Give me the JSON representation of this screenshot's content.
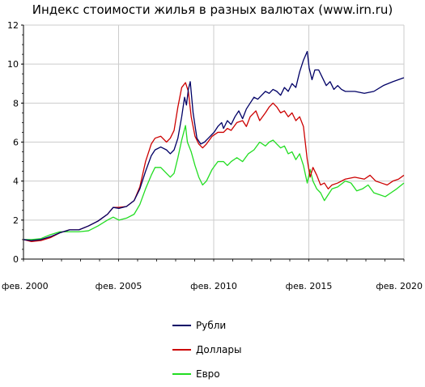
{
  "chart_data": {
    "type": "line",
    "title": "Индекс стоимости жилья в разных валютах (www.irn.ru)",
    "xlabel": "",
    "ylabel": "",
    "xlim": [
      2000.083,
      2020.083
    ],
    "ylim": [
      0,
      12
    ],
    "yticks": [
      0,
      2,
      4,
      6,
      8,
      10,
      12
    ],
    "xticks": [
      {
        "value": 2000.083,
        "label": "фев. 2000"
      },
      {
        "value": 2005.083,
        "label": "фев. 2005"
      },
      {
        "value": 2010.083,
        "label": "фев. 2010"
      },
      {
        "value": 2015.083,
        "label": "фев. 2015"
      },
      {
        "value": 2020.083,
        "label": "фев. 2020"
      }
    ],
    "grid": true,
    "legend_position": "bottom",
    "series": [
      {
        "name": "Рубли",
        "color": "#000066",
        "points": [
          [
            2000.08,
            1.0
          ],
          [
            2000.5,
            0.95
          ],
          [
            2001.0,
            1.0
          ],
          [
            2001.5,
            1.15
          ],
          [
            2002.0,
            1.35
          ],
          [
            2002.5,
            1.5
          ],
          [
            2003.0,
            1.5
          ],
          [
            2003.5,
            1.7
          ],
          [
            2004.0,
            1.95
          ],
          [
            2004.5,
            2.3
          ],
          [
            2004.8,
            2.65
          ],
          [
            2005.1,
            2.6
          ],
          [
            2005.5,
            2.7
          ],
          [
            2005.9,
            3.0
          ],
          [
            2006.2,
            3.6
          ],
          [
            2006.5,
            4.5
          ],
          [
            2006.8,
            5.3
          ],
          [
            2007.0,
            5.6
          ],
          [
            2007.3,
            5.75
          ],
          [
            2007.6,
            5.6
          ],
          [
            2007.8,
            5.4
          ],
          [
            2008.0,
            5.6
          ],
          [
            2008.2,
            6.2
          ],
          [
            2008.4,
            7.3
          ],
          [
            2008.55,
            8.3
          ],
          [
            2008.65,
            7.9
          ],
          [
            2008.75,
            8.7
          ],
          [
            2008.85,
            9.1
          ],
          [
            2009.0,
            7.5
          ],
          [
            2009.2,
            6.2
          ],
          [
            2009.4,
            5.9
          ],
          [
            2009.6,
            6.0
          ],
          [
            2009.8,
            6.2
          ],
          [
            2010.0,
            6.4
          ],
          [
            2010.1,
            6.5
          ],
          [
            2010.3,
            6.8
          ],
          [
            2010.5,
            7.0
          ],
          [
            2010.6,
            6.7
          ],
          [
            2010.8,
            7.1
          ],
          [
            2011.0,
            6.9
          ],
          [
            2011.2,
            7.3
          ],
          [
            2011.4,
            7.6
          ],
          [
            2011.6,
            7.2
          ],
          [
            2011.8,
            7.7
          ],
          [
            2012.0,
            8.0
          ],
          [
            2012.2,
            8.3
          ],
          [
            2012.4,
            8.2
          ],
          [
            2012.6,
            8.4
          ],
          [
            2012.8,
            8.6
          ],
          [
            2013.0,
            8.5
          ],
          [
            2013.2,
            8.7
          ],
          [
            2013.4,
            8.6
          ],
          [
            2013.6,
            8.4
          ],
          [
            2013.8,
            8.8
          ],
          [
            2014.0,
            8.6
          ],
          [
            2014.2,
            9.0
          ],
          [
            2014.4,
            8.8
          ],
          [
            2014.6,
            9.6
          ],
          [
            2014.8,
            10.2
          ],
          [
            2015.0,
            10.65
          ],
          [
            2015.1,
            9.8
          ],
          [
            2015.25,
            9.2
          ],
          [
            2015.4,
            9.7
          ],
          [
            2015.6,
            9.7
          ],
          [
            2015.8,
            9.3
          ],
          [
            2016.0,
            8.9
          ],
          [
            2016.2,
            9.1
          ],
          [
            2016.4,
            8.7
          ],
          [
            2016.6,
            8.9
          ],
          [
            2016.8,
            8.7
          ],
          [
            2017.0,
            8.6
          ],
          [
            2017.5,
            8.6
          ],
          [
            2018.0,
            8.5
          ],
          [
            2018.5,
            8.6
          ],
          [
            2019.0,
            8.9
          ],
          [
            2019.5,
            9.1
          ],
          [
            2020.08,
            9.3
          ]
        ]
      },
      {
        "name": "Доллары",
        "color": "#cc0000",
        "points": [
          [
            2000.08,
            1.0
          ],
          [
            2000.5,
            0.9
          ],
          [
            2001.0,
            0.95
          ],
          [
            2001.5,
            1.1
          ],
          [
            2002.0,
            1.35
          ],
          [
            2002.5,
            1.5
          ],
          [
            2003.0,
            1.5
          ],
          [
            2003.5,
            1.7
          ],
          [
            2004.0,
            1.95
          ],
          [
            2004.5,
            2.3
          ],
          [
            2004.8,
            2.65
          ],
          [
            2005.1,
            2.65
          ],
          [
            2005.5,
            2.7
          ],
          [
            2005.9,
            3.0
          ],
          [
            2006.2,
            3.7
          ],
          [
            2006.5,
            5.0
          ],
          [
            2006.8,
            5.9
          ],
          [
            2007.0,
            6.2
          ],
          [
            2007.3,
            6.3
          ],
          [
            2007.6,
            6.0
          ],
          [
            2007.8,
            6.2
          ],
          [
            2008.0,
            6.6
          ],
          [
            2008.2,
            7.8
          ],
          [
            2008.4,
            8.8
          ],
          [
            2008.6,
            9.05
          ],
          [
            2008.75,
            8.6
          ],
          [
            2008.9,
            7.3
          ],
          [
            2009.1,
            6.3
          ],
          [
            2009.3,
            5.9
          ],
          [
            2009.5,
            5.7
          ],
          [
            2009.7,
            5.9
          ],
          [
            2010.0,
            6.3
          ],
          [
            2010.3,
            6.5
          ],
          [
            2010.6,
            6.5
          ],
          [
            2010.8,
            6.7
          ],
          [
            2011.0,
            6.6
          ],
          [
            2011.3,
            7.0
          ],
          [
            2011.6,
            7.1
          ],
          [
            2011.8,
            6.8
          ],
          [
            2012.0,
            7.3
          ],
          [
            2012.3,
            7.6
          ],
          [
            2012.5,
            7.1
          ],
          [
            2012.8,
            7.5
          ],
          [
            2013.0,
            7.8
          ],
          [
            2013.2,
            8.0
          ],
          [
            2013.4,
            7.8
          ],
          [
            2013.6,
            7.5
          ],
          [
            2013.8,
            7.6
          ],
          [
            2014.0,
            7.3
          ],
          [
            2014.2,
            7.5
          ],
          [
            2014.4,
            7.1
          ],
          [
            2014.6,
            7.3
          ],
          [
            2014.8,
            6.8
          ],
          [
            2015.0,
            5.1
          ],
          [
            2015.15,
            4.2
          ],
          [
            2015.3,
            4.7
          ],
          [
            2015.5,
            4.3
          ],
          [
            2015.7,
            3.8
          ],
          [
            2015.9,
            3.9
          ],
          [
            2016.1,
            3.6
          ],
          [
            2016.3,
            3.8
          ],
          [
            2016.6,
            3.9
          ],
          [
            2017.0,
            4.1
          ],
          [
            2017.5,
            4.2
          ],
          [
            2018.0,
            4.1
          ],
          [
            2018.3,
            4.3
          ],
          [
            2018.6,
            4.0
          ],
          [
            2018.9,
            3.9
          ],
          [
            2019.2,
            3.8
          ],
          [
            2019.5,
            4.0
          ],
          [
            2019.8,
            4.1
          ],
          [
            2020.08,
            4.3
          ]
        ]
      },
      {
        "name": "Евро",
        "color": "#22dd22",
        "points": [
          [
            2000.08,
            1.0
          ],
          [
            2000.5,
            1.0
          ],
          [
            2001.0,
            1.05
          ],
          [
            2001.5,
            1.25
          ],
          [
            2002.0,
            1.4
          ],
          [
            2002.5,
            1.4
          ],
          [
            2003.0,
            1.4
          ],
          [
            2003.5,
            1.45
          ],
          [
            2004.0,
            1.7
          ],
          [
            2004.5,
            2.0
          ],
          [
            2004.8,
            2.15
          ],
          [
            2005.1,
            2.0
          ],
          [
            2005.5,
            2.1
          ],
          [
            2005.9,
            2.3
          ],
          [
            2006.2,
            2.8
          ],
          [
            2006.5,
            3.6
          ],
          [
            2006.8,
            4.3
          ],
          [
            2007.0,
            4.7
          ],
          [
            2007.3,
            4.7
          ],
          [
            2007.6,
            4.4
          ],
          [
            2007.8,
            4.2
          ],
          [
            2008.0,
            4.4
          ],
          [
            2008.2,
            5.2
          ],
          [
            2008.4,
            6.1
          ],
          [
            2008.6,
            6.85
          ],
          [
            2008.7,
            6.0
          ],
          [
            2008.9,
            5.5
          ],
          [
            2009.1,
            4.8
          ],
          [
            2009.3,
            4.2
          ],
          [
            2009.5,
            3.8
          ],
          [
            2009.7,
            4.0
          ],
          [
            2010.0,
            4.6
          ],
          [
            2010.3,
            5.0
          ],
          [
            2010.6,
            5.0
          ],
          [
            2010.8,
            4.8
          ],
          [
            2011.0,
            5.0
          ],
          [
            2011.3,
            5.2
          ],
          [
            2011.6,
            5.0
          ],
          [
            2011.9,
            5.4
          ],
          [
            2012.2,
            5.6
          ],
          [
            2012.5,
            6.0
          ],
          [
            2012.8,
            5.8
          ],
          [
            2013.0,
            6.0
          ],
          [
            2013.2,
            6.1
          ],
          [
            2013.4,
            5.9
          ],
          [
            2013.6,
            5.7
          ],
          [
            2013.8,
            5.8
          ],
          [
            2014.0,
            5.4
          ],
          [
            2014.2,
            5.5
          ],
          [
            2014.4,
            5.1
          ],
          [
            2014.6,
            5.4
          ],
          [
            2014.8,
            4.8
          ],
          [
            2015.0,
            3.9
          ],
          [
            2015.15,
            4.6
          ],
          [
            2015.3,
            4.0
          ],
          [
            2015.5,
            3.6
          ],
          [
            2015.7,
            3.4
          ],
          [
            2015.9,
            3.0
          ],
          [
            2016.1,
            3.3
          ],
          [
            2016.3,
            3.6
          ],
          [
            2016.6,
            3.7
          ],
          [
            2017.0,
            4.0
          ],
          [
            2017.3,
            3.9
          ],
          [
            2017.6,
            3.5
          ],
          [
            2017.9,
            3.6
          ],
          [
            2018.2,
            3.8
          ],
          [
            2018.5,
            3.4
          ],
          [
            2018.8,
            3.3
          ],
          [
            2019.1,
            3.2
          ],
          [
            2019.4,
            3.4
          ],
          [
            2019.7,
            3.6
          ],
          [
            2020.08,
            3.9
          ]
        ]
      }
    ]
  }
}
